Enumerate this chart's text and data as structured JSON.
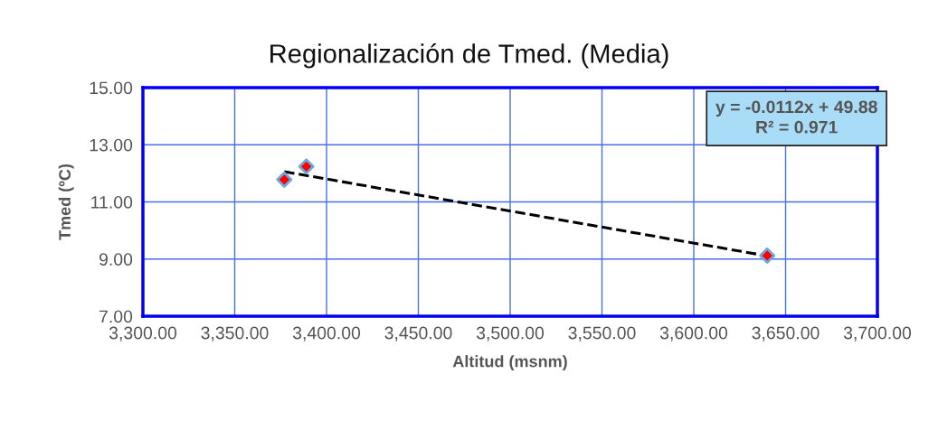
{
  "chart_data": {
    "type": "scatter",
    "title": "Regionalización de Tmed. (Media)",
    "xlabel": "Altitud (msnm)",
    "ylabel": "Tmed (ºC)",
    "series": [
      {
        "color": "#ff0000",
        "x": [
          3377,
          3389,
          3640
        ],
        "values": [
          11.78,
          12.24,
          9.12
        ],
        "marker": "diamond"
      },
      {
        "type": "line",
        "color": "#000000",
        "x": [
          3377,
          3640
        ],
        "values": [
          12.06,
          9.11
        ],
        "line_style": "dashed",
        "marker": "none"
      }
    ],
    "xlim": [
      3300,
      3700
    ],
    "xticks": [
      {
        "value": 3300,
        "label": "3,300.00"
      },
      {
        "value": 3350,
        "label": "3,350.00"
      },
      {
        "value": 3400,
        "label": "3,400.00"
      },
      {
        "value": 3450,
        "label": "3,450.00"
      },
      {
        "value": 3500,
        "label": "3,500.00"
      },
      {
        "value": 3550,
        "label": "3,550.00"
      },
      {
        "value": 3600,
        "label": "3,600.00"
      },
      {
        "value": 3650,
        "label": "3,650.00"
      },
      {
        "value": 3700,
        "label": "3,700.00"
      }
    ],
    "ylim": [
      7,
      15
    ],
    "yticks": [
      {
        "value": 7,
        "label": "7.00"
      },
      {
        "value": 9,
        "label": "9.00"
      },
      {
        "value": 11,
        "label": "11.00"
      },
      {
        "value": 13,
        "label": "13.00"
      },
      {
        "value": 15,
        "label": "15.00"
      }
    ],
    "grid": true,
    "annotations": [
      "y = -0.0112x + 49.88",
      "R² = 0.971"
    ]
  }
}
